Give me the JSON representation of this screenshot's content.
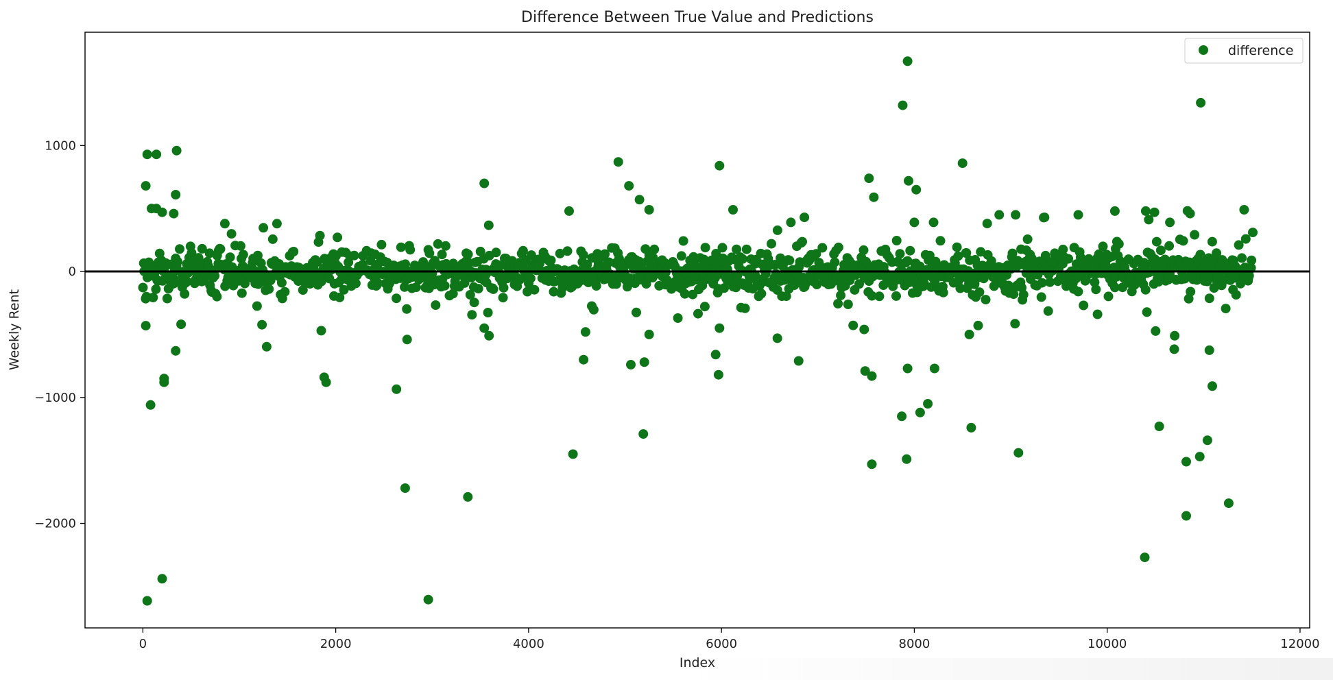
{
  "chart_data": {
    "type": "scatter",
    "title": "Difference Between True Value and Predictions",
    "xlabel": "Index",
    "ylabel": "Weekly Rent",
    "xlim": [
      -600,
      12100
    ],
    "ylim": [
      -2830,
      1900
    ],
    "xticks": [
      0,
      2000,
      4000,
      6000,
      8000,
      10000,
      12000
    ],
    "xtick_labels": [
      "0",
      "2000",
      "4000",
      "6000",
      "8000",
      "10000",
      "12000"
    ],
    "yticks": [
      -2000,
      -1000,
      0,
      1000
    ],
    "ytick_labels": [
      "−2000",
      "−1000",
      "0",
      "1000"
    ],
    "grid": false,
    "legend_position": "top-right",
    "reference_line": {
      "y": 0,
      "color": "#000000"
    },
    "series": [
      {
        "name": "difference",
        "color": "#0e7518",
        "x_range": [
          0,
          11500
        ],
        "typical_spread": 170,
        "dense_band_points": 1400,
        "outliers": [
          [
            45,
            -2615
          ],
          [
            200,
            -2440
          ],
          [
            2960,
            -2605
          ],
          [
            10390,
            -2270
          ],
          [
            3370,
            -1790
          ],
          [
            2720,
            -1720
          ],
          [
            10820,
            -1940
          ],
          [
            11260,
            -1840
          ],
          [
            7560,
            -1530
          ],
          [
            7920,
            -1490
          ],
          [
            4460,
            -1450
          ],
          [
            9080,
            -1440
          ],
          [
            10960,
            -1470
          ],
          [
            10820,
            -1510
          ],
          [
            11040,
            -1340
          ],
          [
            5190,
            -1290
          ],
          [
            8590,
            -1240
          ],
          [
            10540,
            -1230
          ],
          [
            7870,
            -1150
          ],
          [
            8060,
            -1120
          ],
          [
            8140,
            -1050
          ],
          [
            80,
            -1060
          ],
          [
            2630,
            -935
          ],
          [
            11090,
            -910
          ],
          [
            220,
            -850
          ],
          [
            220,
            -880
          ],
          [
            1880,
            -840
          ],
          [
            1900,
            -880
          ],
          [
            5970,
            -820
          ],
          [
            7560,
            -830
          ],
          [
            8210,
            -770
          ],
          [
            7930,
            -770
          ],
          [
            5200,
            -720
          ],
          [
            5060,
            -740
          ],
          [
            4570,
            -700
          ],
          [
            6800,
            -710
          ],
          [
            7490,
            -790
          ],
          [
            11060,
            -625
          ],
          [
            340,
            -630
          ],
          [
            5940,
            -660
          ],
          [
            6580,
            -530
          ],
          [
            8570,
            -500
          ],
          [
            10700,
            -510
          ],
          [
            3590,
            -510
          ],
          [
            2740,
            -540
          ],
          [
            5250,
            -500
          ],
          [
            7480,
            -460
          ],
          [
            30,
            -430
          ],
          [
            1850,
            -470
          ],
          [
            3540,
            -450
          ],
          [
            5980,
            -450
          ],
          [
            4590,
            -480
          ],
          [
            9900,
            -340
          ],
          [
            7930,
            1670
          ],
          [
            7880,
            1320
          ],
          [
            10970,
            1340
          ],
          [
            350,
            960
          ],
          [
            45,
            930
          ],
          [
            140,
            930
          ],
          [
            4930,
            870
          ],
          [
            8500,
            860
          ],
          [
            5980,
            840
          ],
          [
            7530,
            740
          ],
          [
            3540,
            700
          ],
          [
            30,
            680
          ],
          [
            7940,
            720
          ],
          [
            8020,
            650
          ],
          [
            5040,
            680
          ],
          [
            340,
            610
          ],
          [
            7580,
            590
          ],
          [
            5150,
            570
          ],
          [
            90,
            500
          ],
          [
            140,
            500
          ],
          [
            200,
            470
          ],
          [
            320,
            460
          ],
          [
            4420,
            480
          ],
          [
            5250,
            490
          ],
          [
            6120,
            490
          ],
          [
            10080,
            480
          ],
          [
            10400,
            480
          ],
          [
            10490,
            470
          ],
          [
            10860,
            460
          ],
          [
            11420,
            490
          ],
          [
            8880,
            450
          ],
          [
            9050,
            450
          ],
          [
            9700,
            450
          ],
          [
            6860,
            430
          ],
          [
            9350,
            430
          ],
          [
            8000,
            390
          ],
          [
            8200,
            390
          ],
          [
            850,
            380
          ],
          [
            1390,
            380
          ],
          [
            6720,
            390
          ],
          [
            10650,
            390
          ],
          [
            11510,
            310
          ]
        ]
      }
    ]
  }
}
